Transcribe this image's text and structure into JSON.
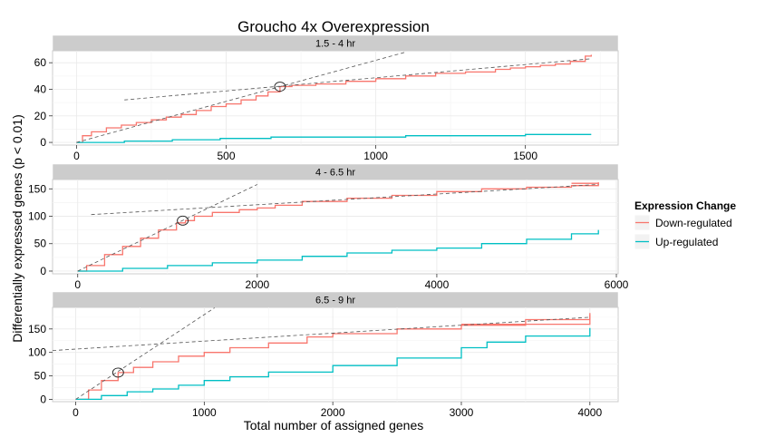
{
  "title": "Groucho 4x Overexpression",
  "ylabel": "Differentially expressed genes (p < 0.01)",
  "xlabel": "Total number of assigned genes",
  "legend": {
    "title": "Expression Change",
    "placement": "right",
    "entries": [
      {
        "label": "Down-regulated",
        "color": "#F8766D"
      },
      {
        "label": "Up-regulated",
        "color": "#00BFC4"
      }
    ]
  },
  "chart_data": [
    {
      "type": "line",
      "panel": "1.5 - 4 hr",
      "xlim": [
        -80,
        1810
      ],
      "ylim": [
        -2,
        69
      ],
      "xticks": [
        0,
        500,
        1000,
        1500
      ],
      "yticks": [
        0,
        20,
        40,
        60
      ],
      "series": [
        {
          "name": "Down-regulated",
          "color": "#F8766D",
          "x": [
            0,
            20,
            50,
            100,
            150,
            200,
            250,
            300,
            350,
            400,
            450,
            500,
            550,
            600,
            640,
            680,
            720,
            800,
            900,
            1000,
            1100,
            1200,
            1300,
            1400,
            1450,
            1500,
            1550,
            1600,
            1650,
            1700,
            1720
          ],
          "y": [
            0,
            5,
            8,
            11,
            13,
            15,
            17,
            19,
            21,
            24,
            27,
            29,
            32,
            35,
            38,
            42,
            43,
            44,
            46,
            48,
            50,
            52,
            53,
            55,
            56,
            57,
            58,
            59,
            61,
            65,
            66
          ]
        },
        {
          "name": "Up-regulated",
          "color": "#00BFC4",
          "x": [
            0,
            160,
            320,
            480,
            650,
            900,
            1100,
            1300,
            1500,
            1720
          ],
          "y": [
            0,
            1,
            2,
            3,
            4,
            4,
            5,
            5,
            6,
            6
          ]
        }
      ],
      "fits": [
        {
          "x": [
            0,
            1100
          ],
          "y": [
            0,
            68
          ]
        },
        {
          "x": [
            160,
            1720
          ],
          "y": [
            32,
            63
          ]
        }
      ],
      "breakpoint": {
        "x": 680,
        "y": 42
      }
    },
    {
      "type": "line",
      "panel": "4 - 6.5 hr",
      "xlim": [
        -280,
        6020
      ],
      "ylim": [
        -5,
        167
      ],
      "xticks": [
        0,
        2000,
        4000,
        6000
      ],
      "yticks": [
        0,
        50,
        100,
        150
      ],
      "series": [
        {
          "name": "Down-regulated",
          "color": "#F8766D",
          "x": [
            0,
            100,
            300,
            500,
            700,
            900,
            1100,
            1200,
            1300,
            1500,
            1800,
            2000,
            2200,
            2500,
            3000,
            3500,
            4000,
            4500,
            5000,
            5500,
            5800
          ],
          "y": [
            0,
            10,
            30,
            45,
            60,
            75,
            88,
            92,
            100,
            107,
            112,
            115,
            120,
            127,
            133,
            138,
            145,
            150,
            153,
            156,
            160
          ]
        },
        {
          "name": "Up-regulated",
          "color": "#00BFC4",
          "x": [
            0,
            500,
            1000,
            1500,
            2000,
            2500,
            3000,
            3500,
            4000,
            4500,
            5000,
            5500,
            5800
          ],
          "y": [
            0,
            5,
            10,
            15,
            20,
            27,
            33,
            38,
            42,
            50,
            58,
            68,
            75
          ]
        },
        {
          "name": "",
          "color": "#F8766D",
          "x": [
            5500,
            5800
          ],
          "y": [
            160,
            162
          ]
        }
      ],
      "fits": [
        {
          "x": [
            0,
            2000
          ],
          "y": [
            0,
            158
          ]
        },
        {
          "x": [
            150,
            5800
          ],
          "y": [
            103,
            158
          ]
        }
      ],
      "breakpoint": {
        "x": 1170,
        "y": 92
      }
    },
    {
      "type": "line",
      "panel": "6.5 - 9 hr",
      "xlim": [
        -180,
        4220
      ],
      "ylim": [
        -5,
        196
      ],
      "xticks": [
        0,
        1000,
        2000,
        3000,
        4000
      ],
      "yticks": [
        0,
        50,
        100,
        150
      ],
      "series": [
        {
          "name": "Down-regulated",
          "color": "#F8766D",
          "x": [
            0,
            100,
            200,
            330,
            450,
            600,
            800,
            1000,
            1200,
            1500,
            1800,
            2000,
            2500,
            3000,
            3500,
            4000
          ],
          "y": [
            0,
            20,
            40,
            57,
            68,
            80,
            92,
            100,
            110,
            120,
            133,
            140,
            150,
            158,
            170,
            180
          ]
        },
        {
          "name": "Up-regulated",
          "color": "#00BFC4",
          "x": [
            0,
            200,
            400,
            600,
            800,
            1000,
            1200,
            1500,
            2000,
            2500,
            3000,
            3200,
            3500,
            4000
          ],
          "y": [
            0,
            8,
            16,
            22,
            30,
            40,
            48,
            58,
            72,
            88,
            110,
            122,
            135,
            152
          ]
        },
        {
          "name": "",
          "color": "#F8766D",
          "x": [
            3000,
            4000
          ],
          "y": [
            160,
            184
          ]
        }
      ],
      "fits": [
        {
          "x": [
            0,
            1080
          ],
          "y": [
            0,
            195
          ]
        },
        {
          "x": [
            -180,
            4000
          ],
          "y": [
            104,
            175
          ]
        }
      ],
      "breakpoint": {
        "x": 330,
        "y": 57
      }
    }
  ]
}
